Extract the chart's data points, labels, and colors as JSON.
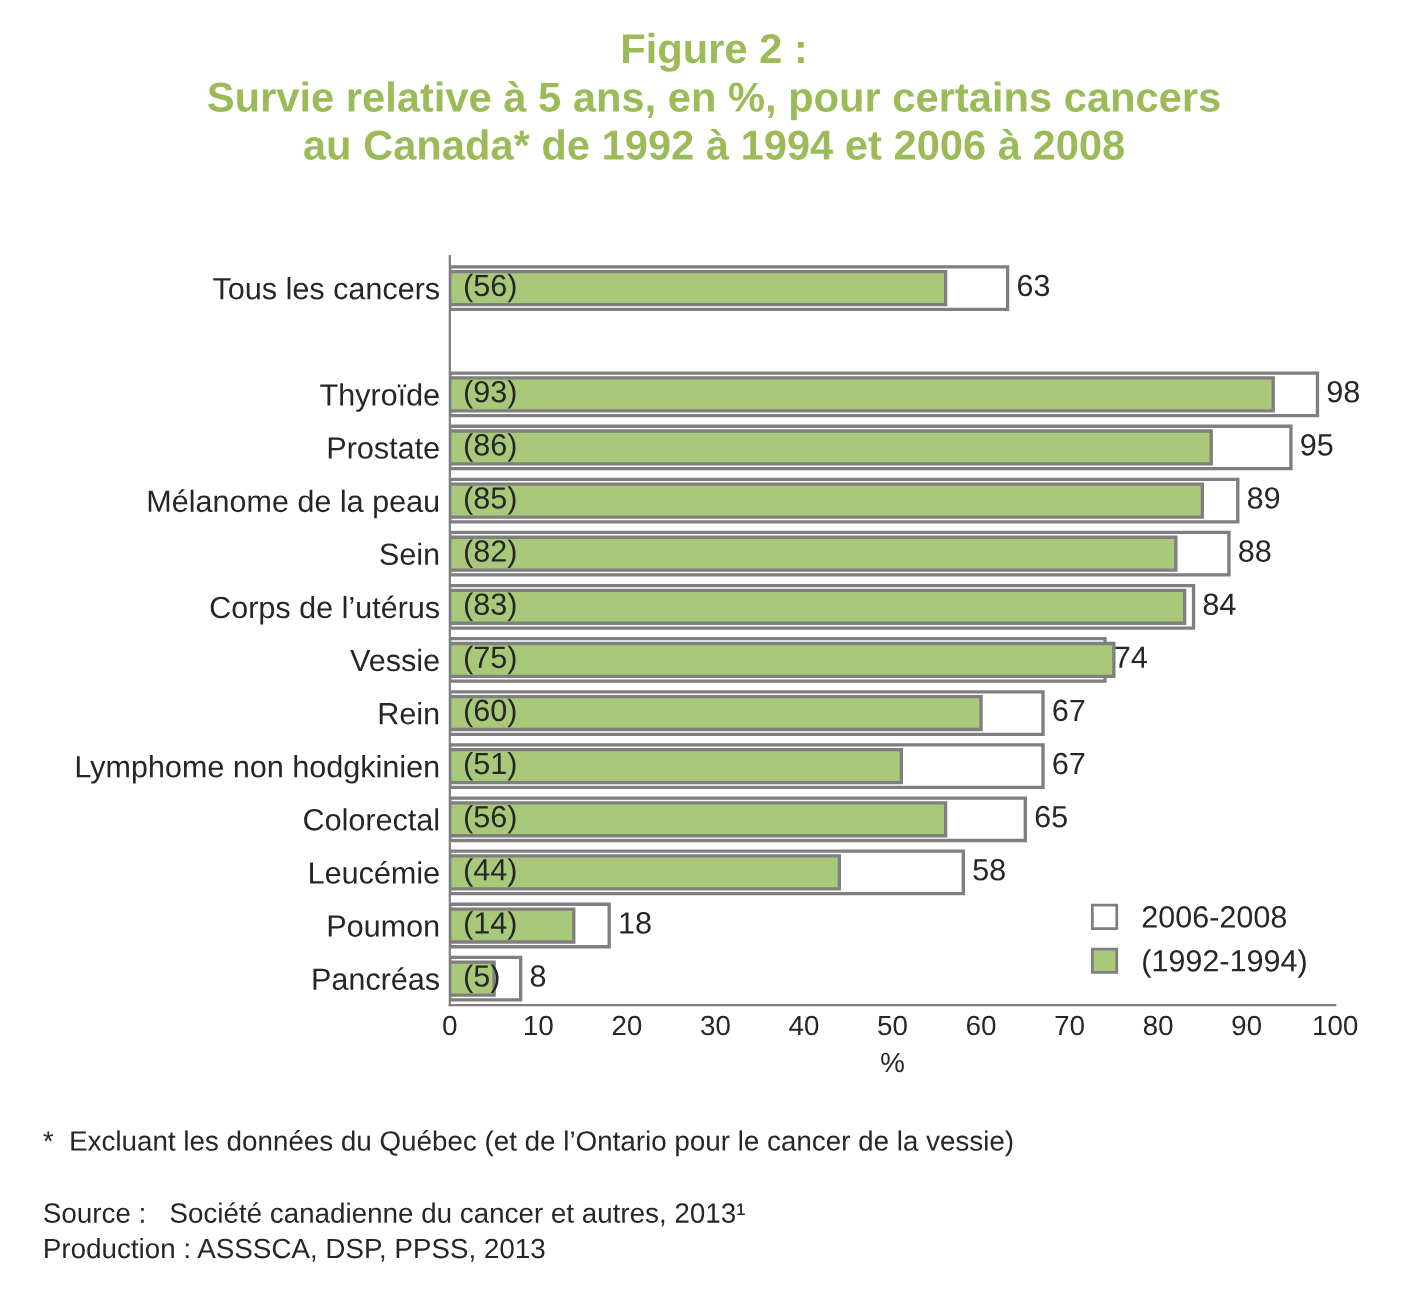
{
  "chart_data": {
    "type": "bar",
    "orientation": "horizontal",
    "title": "Figure 2 :\nSurvie relative à 5 ans, en %, pour certains cancers\nau Canada* de 1992 à 1994 et 2006 à 2008",
    "xlabel": "%",
    "categories": [
      "Tous les cancers",
      null,
      "Thyroïde",
      "Prostate",
      "Mélanome de la peau",
      "Sein",
      "Corps de l’utérus",
      "Vessie",
      "Rein",
      "Lymphome non hodgkinien",
      "Colorectal",
      "Leucémie",
      "Poumon",
      "Pancréas"
    ],
    "series": [
      {
        "name": "2006-2008",
        "color": "#ffffff",
        "values": [
          63,
          null,
          98,
          95,
          89,
          88,
          84,
          74,
          67,
          67,
          65,
          58,
          18,
          8
        ],
        "value_labels": [
          "63",
          null,
          "98",
          "95",
          "89",
          "88",
          "84",
          "74",
          "67",
          "67",
          "65",
          "58",
          "18",
          "8"
        ]
      },
      {
        "name": "(1992-1994)",
        "color": "#a9c97a",
        "values": [
          56,
          null,
          93,
          86,
          85,
          82,
          83,
          75,
          60,
          51,
          56,
          44,
          14,
          5
        ],
        "value_labels": [
          "(56)",
          null,
          "(93)",
          "(86)",
          "(85)",
          "(82)",
          "(83)",
          "(75)",
          "(60)",
          "(51)",
          "(56)",
          "(44)",
          "(14)",
          "(5)"
        ]
      }
    ],
    "xlim": [
      0,
      100
    ],
    "xticks": [
      0,
      10,
      20,
      30,
      40,
      50,
      60,
      70,
      80,
      90,
      100
    ],
    "grid": false,
    "legend": "bottom right",
    "annotations": [
      "*  Excluant les données du Québec (et de l’Ontario pour le cancer de la vessie)",
      "Source :   Société canadienne du cancer et autres, 2013¹",
      "Production : ASSSCA, DSP, PPSS, 2013"
    ]
  }
}
